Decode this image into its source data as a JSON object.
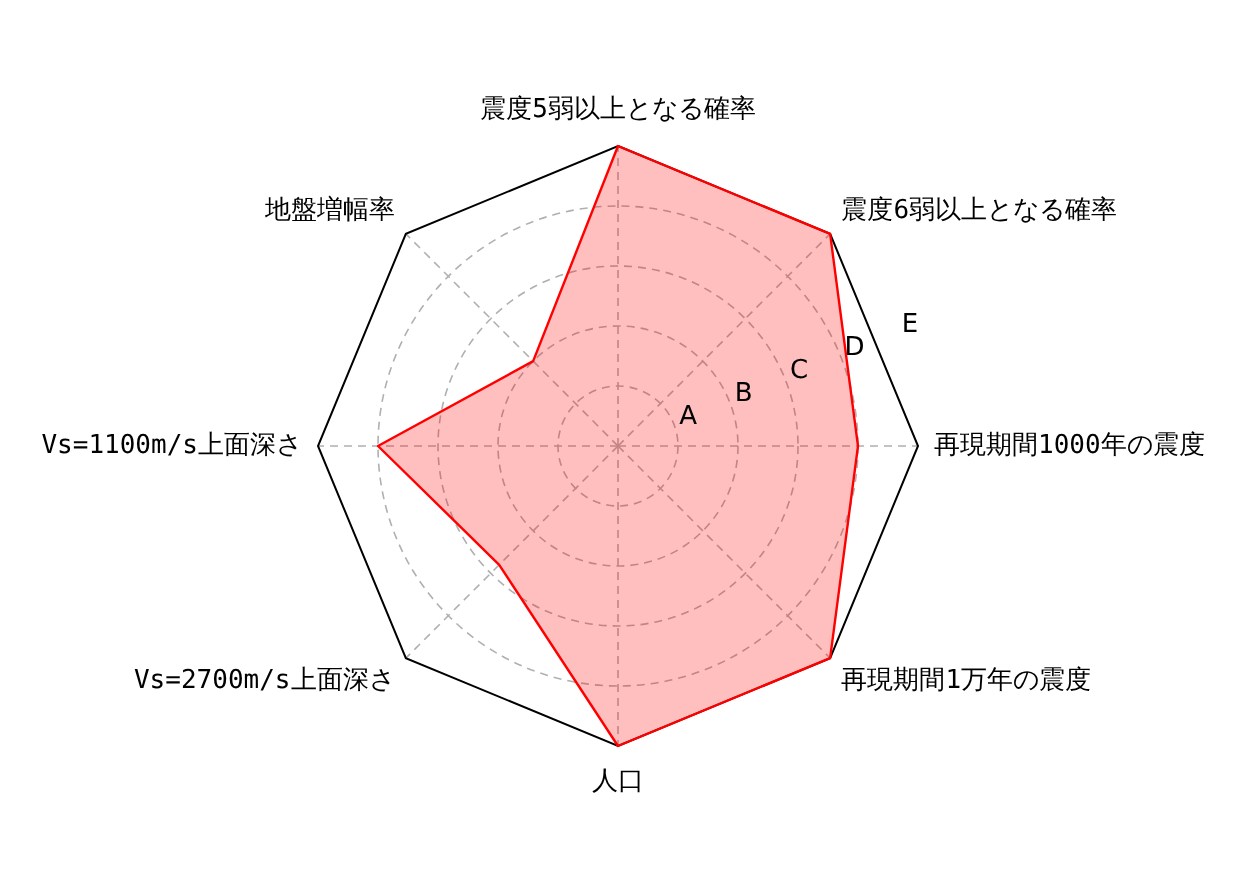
{
  "chart_data": {
    "type": "radar",
    "categories": [
      "震度5弱以上となる確率",
      "震度6弱以上となる確率",
      "再現期間1000年の震度",
      "再現期間1万年の震度",
      "人口",
      "Vs=2700m/s上面深さ",
      "Vs=1100m/s上面深さ",
      "地盤増幅率"
    ],
    "series": [
      {
        "color": "#ff0000",
        "values": [
          5,
          5,
          4,
          5,
          5,
          2.8,
          4,
          2
        ]
      }
    ],
    "ylim": [
      0,
      5
    ],
    "yticks": [
      {
        "value": 1,
        "label": "A"
      },
      {
        "value": 2,
        "label": "B"
      },
      {
        "value": 3,
        "label": "C"
      },
      {
        "value": 4,
        "label": "D"
      },
      {
        "value": 5,
        "label": "E"
      }
    ],
    "grid": true,
    "marker": "none",
    "line_style": "solid"
  }
}
